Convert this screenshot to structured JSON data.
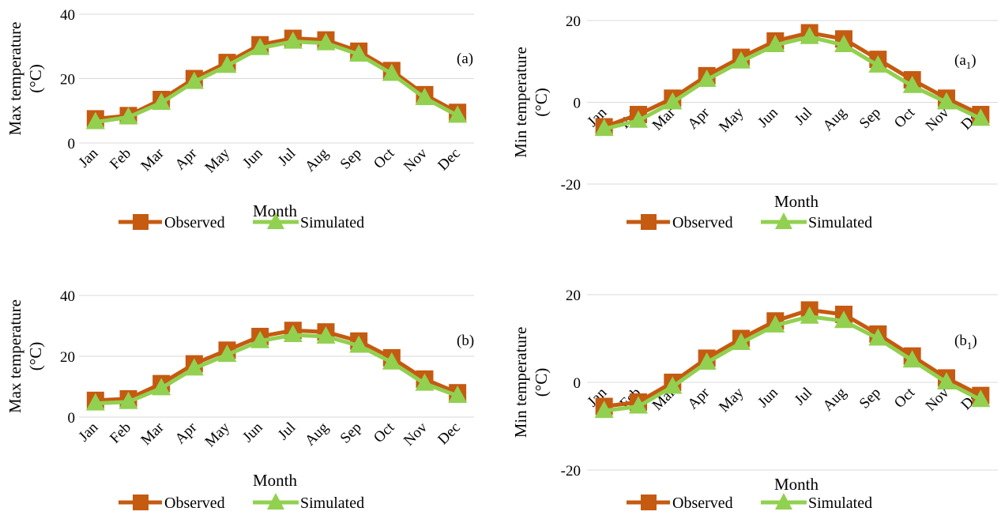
{
  "colors": {
    "observed": "#C55A11",
    "simulated": "#92D050",
    "grid": "#D9D9D9"
  },
  "legend_icons": {
    "observed": "square-marker-icon",
    "simulated": "triangle-marker-icon"
  },
  "chart_data": [
    {
      "type": "line",
      "panel_label": "(a)",
      "ylabel_lines": [
        "Max temperature",
        "(°C)"
      ],
      "xlabel": "Month",
      "categories": [
        "Jan",
        "Feb",
        "Mar",
        "Apr",
        "May",
        "Jun",
        "Jul",
        "Aug",
        "Sep",
        "Oct",
        "Nov",
        "Dec"
      ],
      "ylim": [
        0,
        40
      ],
      "yticks": [
        "0",
        "20",
        "40"
      ],
      "grid": true,
      "legend_position": "bottom",
      "series": [
        {
          "name": "Observed",
          "values": [
            7.5,
            8.5,
            13.5,
            20,
            25,
            30.5,
            32.5,
            32,
            28.5,
            22.5,
            15,
            9.5
          ]
        },
        {
          "name": "Simulated",
          "values": [
            6.5,
            8,
            12.5,
            19,
            24,
            29.5,
            31.5,
            31,
            27.5,
            21.5,
            14,
            8.5
          ]
        }
      ]
    },
    {
      "type": "line",
      "panel_label": "(a",
      "panel_label_sub": "1",
      "panel_label_end": ")",
      "ylabel_lines": [
        "Min temperature",
        "(°C)"
      ],
      "xlabel": "Month",
      "categories": [
        "Jan",
        "Feb",
        "Mar",
        "Apr",
        "May",
        "Jun",
        "Jul",
        "Aug",
        "Sep",
        "Oct",
        "Nov",
        "Dec"
      ],
      "ylim": [
        -20,
        20
      ],
      "yticks": [
        "-20",
        "0",
        "20"
      ],
      "grid": true,
      "legend_position": "bottom",
      "series": [
        {
          "name": "Observed",
          "values": [
            -6,
            -3,
            1,
            6.5,
            11,
            15,
            17,
            15.5,
            10.5,
            5.5,
            1,
            -3
          ]
        },
        {
          "name": "Simulated",
          "values": [
            -6.5,
            -4.5,
            0,
            5.5,
            10,
            14,
            16,
            14,
            9,
            4,
            0,
            -4
          ]
        }
      ]
    },
    {
      "type": "line",
      "panel_label": "(b)",
      "ylabel_lines": [
        "Max temperature",
        "(°C)"
      ],
      "xlabel": "Month",
      "categories": [
        "Jan",
        "Feb",
        "Mar",
        "Apr",
        "May",
        "Jun",
        "Jul",
        "Aug",
        "Sep",
        "Oct",
        "Nov",
        "Dec"
      ],
      "ylim": [
        0,
        40
      ],
      "yticks": [
        "0",
        "20",
        "40"
      ],
      "grid": true,
      "legend_position": "bottom",
      "series": [
        {
          "name": "Observed",
          "values": [
            5.5,
            6,
            11,
            17.5,
            22,
            26.5,
            28.5,
            28,
            25,
            19.5,
            12.5,
            8
          ]
        },
        {
          "name": "Simulated",
          "values": [
            4.5,
            5,
            9.5,
            16,
            20.5,
            25,
            27,
            26.5,
            23.5,
            18,
            11,
            7
          ]
        }
      ]
    },
    {
      "type": "line",
      "panel_label": "(b",
      "panel_label_sub": "1",
      "panel_label_end": ")",
      "ylabel_lines": [
        "Min temperature",
        "(°C)"
      ],
      "xlabel": "Month",
      "categories": [
        "Jan",
        "Feb",
        "Mar",
        "Apr",
        "May",
        "Jun",
        "Jul",
        "Aug",
        "Sep",
        "Oct",
        "Nov",
        "Dec"
      ],
      "ylim": [
        -20,
        20
      ],
      "yticks": [
        "-20",
        "0",
        "20"
      ],
      "grid": true,
      "legend_position": "bottom",
      "series": [
        {
          "name": "Observed",
          "values": [
            -5.5,
            -4.5,
            0,
            5.5,
            10,
            14,
            16.5,
            15.5,
            11,
            6,
            1,
            -3
          ]
        },
        {
          "name": "Simulated",
          "values": [
            -6.5,
            -5.5,
            -1,
            4.5,
            9,
            13,
            15,
            14,
            10,
            5,
            0,
            -4
          ]
        }
      ]
    }
  ]
}
